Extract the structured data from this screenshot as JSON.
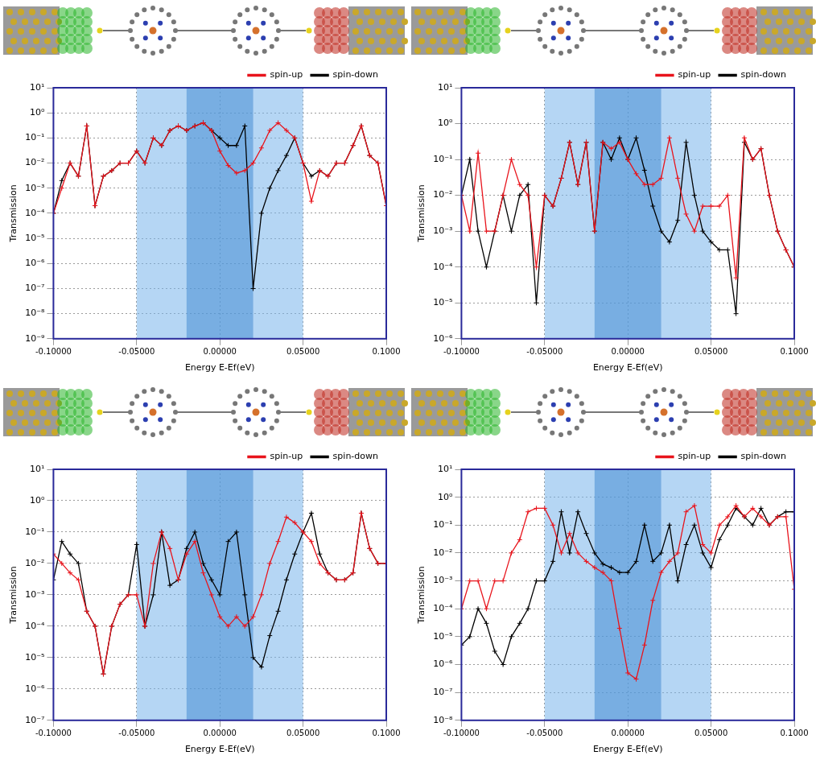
{
  "chart_data": [
    {
      "type": "line",
      "x_label": "Energy E-Ef(eV)",
      "y_label": "Transmission",
      "log": "y",
      "grid": true,
      "legend": "top-right",
      "x": [
        -0.1,
        -0.095,
        -0.09,
        -0.085,
        -0.08,
        -0.075,
        -0.07,
        -0.065,
        -0.06,
        -0.055,
        -0.05,
        -0.045,
        -0.04,
        -0.035,
        -0.03,
        -0.025,
        -0.02,
        -0.015,
        -0.01,
        -0.005,
        0,
        0.005,
        0.01,
        0.015,
        0.02,
        0.025,
        0.03,
        0.035,
        0.04,
        0.045,
        0.05,
        0.055,
        0.06,
        0.065,
        0.07,
        0.075,
        0.08,
        0.085,
        0.09,
        0.095,
        0.1
      ],
      "xlim": [
        -0.1,
        0.1
      ],
      "xticks": [
        {
          "value": -0.1,
          "label": "-0.10000"
        },
        {
          "value": -0.05,
          "label": "-0.05000"
        },
        {
          "value": 0,
          "label": "0.00000"
        },
        {
          "value": 0.05,
          "label": "0.05000"
        },
        {
          "value": 0.1,
          "label": "0.1000"
        }
      ],
      "ylim": [
        1e-09,
        10
      ],
      "yticks": [
        {
          "value": 1e-09,
          "label": "10⁻⁹"
        },
        {
          "value": 1e-08,
          "label": "10⁻⁸"
        },
        {
          "value": 1e-07,
          "label": "10⁻⁷"
        },
        {
          "value": 1e-06,
          "label": "10⁻⁶"
        },
        {
          "value": 1e-05,
          "label": "10⁻⁵"
        },
        {
          "value": 0.0001,
          "label": "10⁻⁴"
        },
        {
          "value": 0.001,
          "label": "10⁻³"
        },
        {
          "value": 0.01,
          "label": "10⁻²"
        },
        {
          "value": 0.1,
          "label": "10⁻¹"
        },
        {
          "value": 1,
          "label": "10⁰"
        },
        {
          "value": 10,
          "label": "10¹"
        }
      ],
      "bands": [
        [
          -0.05,
          0.05
        ],
        [
          -0.02,
          0.02
        ]
      ],
      "series": [
        {
          "name": "spin-up",
          "color": "#e8141c",
          "marker": "plus",
          "values": [
            0.0001,
            0.001,
            0.01,
            0.003,
            0.3,
            0.0002,
            0.003,
            0.005,
            0.01,
            0.01,
            0.03,
            0.01,
            0.1,
            0.05,
            0.2,
            0.3,
            0.2,
            0.3,
            0.4,
            0.2,
            0.03,
            0.008,
            0.004,
            0.005,
            0.01,
            0.04,
            0.2,
            0.4,
            0.2,
            0.1,
            0.01,
            0.0003,
            0.005,
            0.003,
            0.01,
            0.01,
            0.05,
            0.3,
            0.02,
            0.01,
            0.0002
          ]
        },
        {
          "name": "spin-down",
          "color": "#000000",
          "marker": "plus",
          "values": [
            0.0001,
            0.002,
            0.01,
            0.003,
            0.3,
            0.0002,
            0.003,
            0.005,
            0.01,
            0.01,
            0.03,
            0.01,
            0.1,
            0.05,
            0.2,
            0.3,
            0.2,
            0.3,
            0.4,
            0.2,
            0.1,
            0.05,
            0.05,
            0.3,
            1e-07,
            0.0001,
            0.001,
            0.005,
            0.02,
            0.1,
            0.01,
            0.003,
            0.005,
            0.003,
            0.01,
            0.01,
            0.05,
            0.3,
            0.02,
            0.01,
            0.0002
          ]
        }
      ]
    },
    {
      "type": "line",
      "x_label": "Energy E-Ef(eV)",
      "y_label": "Transmission",
      "log": "y",
      "grid": true,
      "legend": "top-right",
      "x": [
        -0.1,
        -0.095,
        -0.09,
        -0.085,
        -0.08,
        -0.075,
        -0.07,
        -0.065,
        -0.06,
        -0.055,
        -0.05,
        -0.045,
        -0.04,
        -0.035,
        -0.03,
        -0.025,
        -0.02,
        -0.015,
        -0.01,
        -0.005,
        0,
        0.005,
        0.01,
        0.015,
        0.02,
        0.025,
        0.03,
        0.035,
        0.04,
        0.045,
        0.05,
        0.055,
        0.06,
        0.065,
        0.07,
        0.075,
        0.08,
        0.085,
        0.09,
        0.095,
        0.1
      ],
      "xlim": [
        -0.1,
        0.1
      ],
      "xticks": [
        {
          "value": -0.1,
          "label": "-0.10000"
        },
        {
          "value": -0.05,
          "label": "-0.05000"
        },
        {
          "value": 0,
          "label": "0.00000"
        },
        {
          "value": 0.05,
          "label": "0.05000"
        },
        {
          "value": 0.1,
          "label": "0.1000"
        }
      ],
      "ylim": [
        1e-06,
        10
      ],
      "yticks": [
        {
          "value": 1e-06,
          "label": "10⁻⁶"
        },
        {
          "value": 1e-05,
          "label": "10⁻⁵"
        },
        {
          "value": 0.0001,
          "label": "10⁻⁴"
        },
        {
          "value": 0.001,
          "label": "10⁻³"
        },
        {
          "value": 0.01,
          "label": "10⁻²"
        },
        {
          "value": 0.1,
          "label": "10⁻¹"
        },
        {
          "value": 1,
          "label": "10⁰"
        },
        {
          "value": 10,
          "label": "10¹"
        }
      ],
      "bands": [
        [
          -0.05,
          0.05
        ],
        [
          -0.02,
          0.02
        ]
      ],
      "series": [
        {
          "name": "spin-up",
          "color": "#e8141c",
          "marker": "plus",
          "values": [
            0.01,
            0.001,
            0.15,
            0.001,
            0.001,
            0.01,
            0.1,
            0.02,
            0.01,
            0.0001,
            0.01,
            0.005,
            0.03,
            0.3,
            0.02,
            0.3,
            0.001,
            0.3,
            0.2,
            0.3,
            0.1,
            0.04,
            0.02,
            0.02,
            0.03,
            0.4,
            0.03,
            0.003,
            0.001,
            0.005,
            0.005,
            0.005,
            0.01,
            5e-05,
            0.4,
            0.1,
            0.2,
            0.01,
            0.001,
            0.0003,
            0.0001
          ]
        },
        {
          "name": "spin-down",
          "color": "#000000",
          "marker": "plus",
          "values": [
            0.01,
            0.1,
            0.001,
            0.0001,
            0.001,
            0.01,
            0.001,
            0.01,
            0.02,
            1e-05,
            0.01,
            0.005,
            0.03,
            0.3,
            0.02,
            0.3,
            0.001,
            0.3,
            0.1,
            0.4,
            0.1,
            0.4,
            0.05,
            0.005,
            0.001,
            0.0005,
            0.002,
            0.3,
            0.01,
            0.001,
            0.0005,
            0.0003,
            0.0003,
            5e-06,
            0.3,
            0.1,
            0.2,
            0.01,
            0.001,
            0.0003,
            0.0001
          ]
        }
      ]
    },
    {
      "type": "line",
      "x_label": "Energy E-Ef(eV)",
      "y_label": "Transmission",
      "log": "y",
      "grid": true,
      "legend": "top-right",
      "x": [
        -0.1,
        -0.095,
        -0.09,
        -0.085,
        -0.08,
        -0.075,
        -0.07,
        -0.065,
        -0.06,
        -0.055,
        -0.05,
        -0.045,
        -0.04,
        -0.035,
        -0.03,
        -0.025,
        -0.02,
        -0.015,
        -0.01,
        -0.005,
        0,
        0.005,
        0.01,
        0.015,
        0.02,
        0.025,
        0.03,
        0.035,
        0.04,
        0.045,
        0.05,
        0.055,
        0.06,
        0.065,
        0.07,
        0.075,
        0.08,
        0.085,
        0.09,
        0.095,
        0.1
      ],
      "xlim": [
        -0.1,
        0.1
      ],
      "xticks": [
        {
          "value": -0.1,
          "label": "-0.10000"
        },
        {
          "value": -0.05,
          "label": "-0.05000"
        },
        {
          "value": 0,
          "label": "0.00000"
        },
        {
          "value": 0.05,
          "label": "0.05000"
        },
        {
          "value": 0.1,
          "label": "0.1000"
        }
      ],
      "ylim": [
        1e-07,
        10
      ],
      "yticks": [
        {
          "value": 1e-07,
          "label": "10⁻⁷"
        },
        {
          "value": 1e-06,
          "label": "10⁻⁶"
        },
        {
          "value": 1e-05,
          "label": "10⁻⁵"
        },
        {
          "value": 0.0001,
          "label": "10⁻⁴"
        },
        {
          "value": 0.001,
          "label": "10⁻³"
        },
        {
          "value": 0.01,
          "label": "10⁻²"
        },
        {
          "value": 0.1,
          "label": "10⁻¹"
        },
        {
          "value": 1,
          "label": "10⁰"
        },
        {
          "value": 10,
          "label": "10¹"
        }
      ],
      "bands": [
        [
          -0.05,
          0.05
        ],
        [
          -0.02,
          0.02
        ]
      ],
      "series": [
        {
          "name": "spin-up",
          "color": "#e8141c",
          "marker": "plus",
          "values": [
            0.02,
            0.01,
            0.005,
            0.003,
            0.0003,
            0.0001,
            3e-06,
            0.0001,
            0.0005,
            0.001,
            0.001,
            0.0001,
            0.01,
            0.1,
            0.03,
            0.003,
            0.02,
            0.05,
            0.005,
            0.001,
            0.0002,
            0.0001,
            0.0002,
            0.0001,
            0.0002,
            0.001,
            0.01,
            0.05,
            0.3,
            0.2,
            0.1,
            0.05,
            0.01,
            0.005,
            0.003,
            0.003,
            0.005,
            0.4,
            0.03,
            0.01,
            0.01
          ]
        },
        {
          "name": "spin-down",
          "color": "#000000",
          "marker": "plus",
          "values": [
            0.003,
            0.05,
            0.02,
            0.01,
            0.0003,
            0.0001,
            3e-06,
            0.0001,
            0.0005,
            0.001,
            0.04,
            0.0001,
            0.001,
            0.1,
            0.002,
            0.003,
            0.03,
            0.1,
            0.01,
            0.003,
            0.001,
            0.05,
            0.1,
            0.001,
            1e-05,
            5e-06,
            5e-05,
            0.0003,
            0.003,
            0.02,
            0.1,
            0.4,
            0.02,
            0.005,
            0.003,
            0.003,
            0.005,
            0.4,
            0.03,
            0.01,
            0.01
          ]
        }
      ]
    },
    {
      "type": "line",
      "x_label": "Energy E-Ef(eV)",
      "y_label": "Transmission",
      "log": "y",
      "grid": true,
      "legend": "top-right",
      "x": [
        -0.1,
        -0.095,
        -0.09,
        -0.085,
        -0.08,
        -0.075,
        -0.07,
        -0.065,
        -0.06,
        -0.055,
        -0.05,
        -0.045,
        -0.04,
        -0.035,
        -0.03,
        -0.025,
        -0.02,
        -0.015,
        -0.01,
        -0.005,
        0,
        0.005,
        0.01,
        0.015,
        0.02,
        0.025,
        0.03,
        0.035,
        0.04,
        0.045,
        0.05,
        0.055,
        0.06,
        0.065,
        0.07,
        0.075,
        0.08,
        0.085,
        0.09,
        0.095,
        0.1
      ],
      "xlim": [
        -0.1,
        0.1
      ],
      "xticks": [
        {
          "value": -0.1,
          "label": "-0.10000"
        },
        {
          "value": -0.05,
          "label": "-0.05000"
        },
        {
          "value": 0,
          "label": "0.00000"
        },
        {
          "value": 0.05,
          "label": "0.05000"
        },
        {
          "value": 0.1,
          "label": "0.1000"
        }
      ],
      "ylim": [
        1e-08,
        10
      ],
      "yticks": [
        {
          "value": 1e-08,
          "label": "10⁻⁸"
        },
        {
          "value": 1e-07,
          "label": "10⁻⁷"
        },
        {
          "value": 1e-06,
          "label": "10⁻⁶"
        },
        {
          "value": 1e-05,
          "label": "10⁻⁵"
        },
        {
          "value": 0.0001,
          "label": "10⁻⁴"
        },
        {
          "value": 0.001,
          "label": "10⁻³"
        },
        {
          "value": 0.01,
          "label": "10⁻²"
        },
        {
          "value": 0.1,
          "label": "10⁻¹"
        },
        {
          "value": 1,
          "label": "10⁰"
        },
        {
          "value": 10,
          "label": "10¹"
        }
      ],
      "bands": [
        [
          -0.05,
          0.05
        ],
        [
          -0.02,
          0.02
        ]
      ],
      "series": [
        {
          "name": "spin-up",
          "color": "#e8141c",
          "marker": "plus",
          "values": [
            0.0001,
            0.001,
            0.001,
            0.0001,
            0.001,
            0.001,
            0.01,
            0.03,
            0.3,
            0.4,
            0.4,
            0.1,
            0.01,
            0.05,
            0.01,
            0.005,
            0.003,
            0.002,
            0.001,
            2e-05,
            5e-07,
            3e-07,
            5e-06,
            0.0002,
            0.002,
            0.005,
            0.01,
            0.3,
            0.5,
            0.02,
            0.01,
            0.1,
            0.2,
            0.5,
            0.2,
            0.4,
            0.2,
            0.1,
            0.2,
            0.2,
            0.0005
          ]
        },
        {
          "name": "spin-down",
          "color": "#000000",
          "marker": "plus",
          "values": [
            5e-06,
            1e-05,
            0.0001,
            3e-05,
            3e-06,
            1e-06,
            1e-05,
            3e-05,
            0.0001,
            0.001,
            0.001,
            0.005,
            0.3,
            0.01,
            0.3,
            0.05,
            0.01,
            0.004,
            0.003,
            0.002,
            0.002,
            0.005,
            0.1,
            0.005,
            0.01,
            0.1,
            0.001,
            0.02,
            0.1,
            0.01,
            0.003,
            0.03,
            0.1,
            0.4,
            0.2,
            0.1,
            0.4,
            0.1,
            0.2,
            0.3,
            0.3
          ]
        }
      ]
    }
  ]
}
